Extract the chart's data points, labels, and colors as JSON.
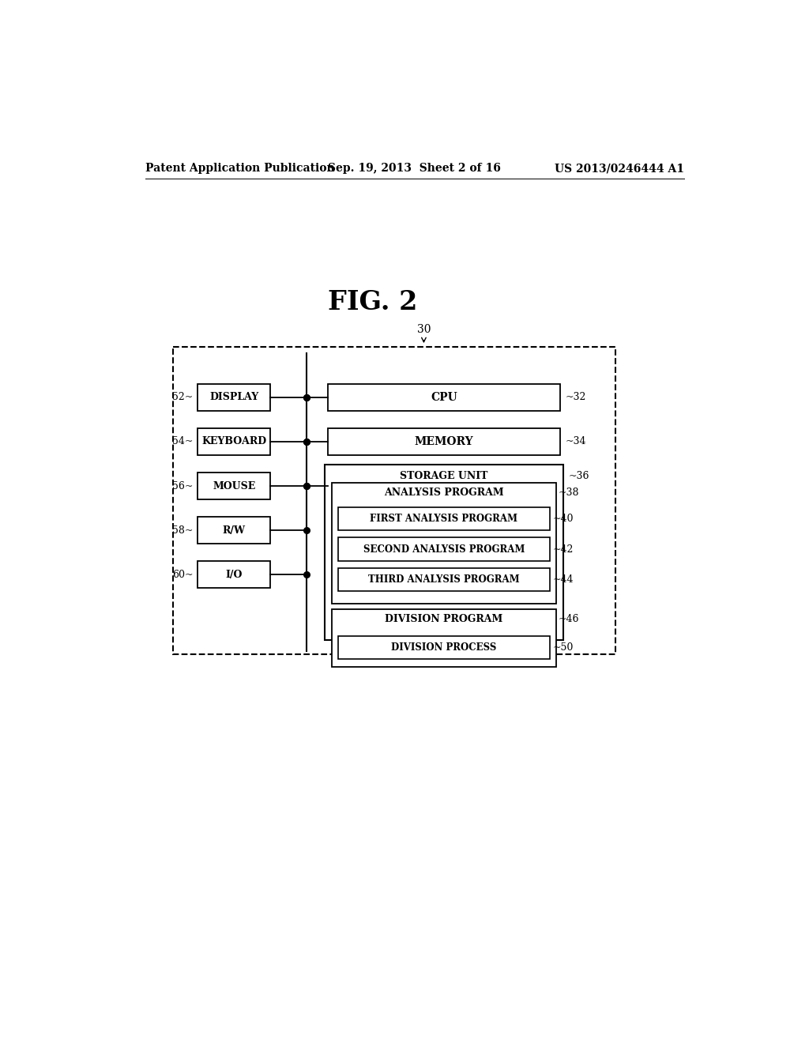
{
  "title": "FIG. 2",
  "header_left": "Patent Application Publication",
  "header_center": "Sep. 19, 2013  Sheet 2 of 16",
  "header_right": "US 2013/0246444 A1",
  "bg_color": "#ffffff",
  "fig_label": "30",
  "left_boxes": [
    {
      "label": "DISPLAY",
      "ref": "52"
    },
    {
      "label": "KEYBOARD",
      "ref": "54"
    },
    {
      "label": "MOUSE",
      "ref": "56"
    },
    {
      "label": "R/W",
      "ref": "58"
    },
    {
      "label": "I/O",
      "ref": "60"
    }
  ],
  "cpu_label": "CPU",
  "cpu_ref": "32",
  "memory_label": "MEMORY",
  "memory_ref": "34",
  "storage_label": "STORAGE UNIT",
  "storage_ref": "36",
  "analysis_outer_label": "ANALYSIS PROGRAM",
  "analysis_outer_ref": "38",
  "analysis_inner_boxes": [
    {
      "label": "FIRST ANALYSIS PROGRAM",
      "ref": "40"
    },
    {
      "label": "SECOND ANALYSIS PROGRAM",
      "ref": "42"
    },
    {
      "label": "THIRD ANALYSIS PROGRAM",
      "ref": "44"
    }
  ],
  "division_outer_label": "DIVISION PROGRAM",
  "division_outer_ref": "46",
  "division_inner_label": "DIVISION PROCESS",
  "division_inner_ref": "50"
}
